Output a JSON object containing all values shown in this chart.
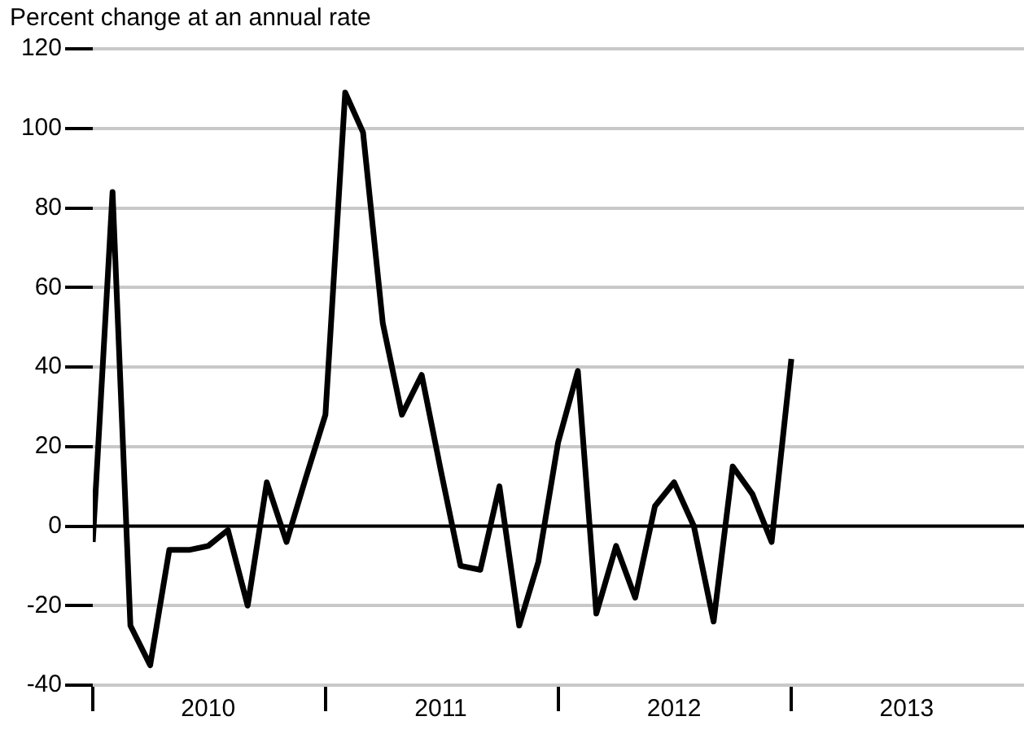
{
  "chart_data": {
    "type": "line",
    "ylabel": "Percent change at an annual rate",
    "x": [
      "2010-01",
      "2010-02",
      "2010-03",
      "2010-04",
      "2010-05",
      "2010-06",
      "2010-07",
      "2010-08",
      "2010-09",
      "2010-10",
      "2010-11",
      "2010-12",
      "2011-01",
      "2011-02",
      "2011-03",
      "2011-04",
      "2011-05",
      "2011-06",
      "2011-07",
      "2011-08",
      "2011-09",
      "2011-10",
      "2011-11",
      "2011-12",
      "2012-01",
      "2012-02",
      "2012-03",
      "2012-04",
      "2012-05",
      "2012-06",
      "2012-07",
      "2012-08",
      "2012-09",
      "2012-10",
      "2012-11",
      "2012-12",
      "2013-01"
    ],
    "series": [
      {
        "color": "#000000",
        "values": [
          -4,
          84,
          -25,
          -35,
          -6,
          -6,
          -5,
          -1,
          -20,
          11,
          -4,
          12,
          28,
          109,
          99,
          51,
          28,
          38,
          14,
          -10,
          -11,
          10,
          -25,
          -9,
          21,
          39,
          -22,
          -5,
          -18,
          5,
          11,
          0,
          -24,
          15,
          8,
          -4,
          42
        ]
      }
    ],
    "xlim": [
      "2010-01",
      "2014-01"
    ],
    "xticks": [
      {
        "value": "2010-01",
        "label": null
      },
      {
        "value": "2010-07",
        "label": "2010"
      },
      {
        "value": "2011-01",
        "label": null
      },
      {
        "value": "2011-07",
        "label": "2011"
      },
      {
        "value": "2012-01",
        "label": null
      },
      {
        "value": "2012-07",
        "label": "2012"
      },
      {
        "value": "2013-01",
        "label": null
      },
      {
        "value": "2013-07",
        "label": "2013"
      }
    ],
    "ylim": [
      -40,
      120
    ],
    "yticks": [
      -40,
      -20,
      0,
      20,
      40,
      60,
      80,
      100,
      120
    ],
    "ref_lines": [
      {
        "axis": "y",
        "value": 0,
        "color": "#000000"
      }
    ],
    "grid": "y",
    "legend": false,
    "marker": "none",
    "line_style": "solid"
  }
}
